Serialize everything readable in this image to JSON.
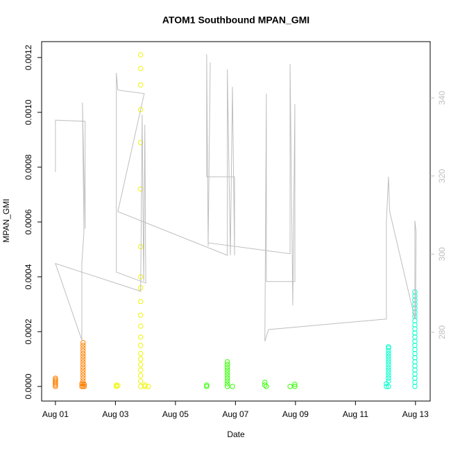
{
  "chart_data": {
    "type": "scatter",
    "title": "ATOM1 Southbound MPAN_GMI",
    "x_label": "Date",
    "y_label": "MPAN_GMI",
    "xlim": [
      -0.46,
      12.49
    ],
    "ylim": [
      -5.32e-05,
      0.001258
    ],
    "y2lim": [
      262.4,
      354.4
    ],
    "xticks": [
      {
        "value": 0,
        "label": "Aug 01"
      },
      {
        "value": 2,
        "label": "Aug 03"
      },
      {
        "value": 4,
        "label": "Aug 05"
      },
      {
        "value": 6,
        "label": "Aug 07"
      },
      {
        "value": 8,
        "label": "Aug 09"
      },
      {
        "value": 10,
        "label": "Aug 11"
      },
      {
        "value": 12,
        "label": "Aug 13"
      }
    ],
    "yticks": [
      {
        "value": 0,
        "label": "0.0000"
      },
      {
        "value": 0.0002,
        "label": "0.0002"
      },
      {
        "value": 0.0004,
        "label": "0.0004"
      },
      {
        "value": 0.0006,
        "label": "0.0006"
      },
      {
        "value": 0.0008,
        "label": "0.0008"
      },
      {
        "value": 0.001,
        "label": "0.0010"
      },
      {
        "value": 0.0012,
        "label": "0.0012"
      }
    ],
    "y2ticks": [
      280,
      300,
      320,
      340
    ],
    "series": [
      {
        "color": "#ff8000",
        "x": [
          0,
          0,
          0,
          0,
          0,
          0,
          0,
          0.88,
          0.88,
          0.92,
          0.92,
          0.92,
          0.92,
          0.92,
          0.92,
          0.92,
          0.92,
          0.92,
          0.92,
          0.92,
          0.92,
          0.92,
          0.92,
          0.92,
          0.92,
          0.92,
          0.96,
          0.96
        ],
        "values": [
          0,
          5e-06,
          1e-05,
          1.5e-05,
          2e-05,
          2.5e-05,
          3e-05,
          0,
          1e-05,
          0,
          1e-05,
          2e-05,
          3e-05,
          4e-05,
          5e-05,
          6e-05,
          7e-05,
          8e-05,
          9e-05,
          0.0001,
          0.00011,
          0.00012,
          0.00013,
          0.00014,
          0.00015,
          0.00016,
          0,
          8e-06
        ]
      },
      {
        "color": "#f0f500",
        "x": [
          2.03,
          2.03,
          2.08,
          2.84,
          2.84,
          2.84,
          2.84,
          2.84,
          2.84,
          2.84,
          2.84,
          2.84,
          2.84,
          2.84,
          2.84,
          2.84,
          2.84,
          2.84,
          2.84,
          2.84,
          2.84,
          2.84,
          2.84,
          2.84,
          2.98,
          2.98,
          3.1
        ],
        "values": [
          0,
          5e-06,
          3e-06,
          0.00121,
          0.00116,
          0.0011,
          0.00101,
          0.00089,
          0.00072,
          0.00051,
          0.0004,
          0.00036,
          0.00031,
          0.00026,
          0.00022,
          0.00018,
          0.00015,
          0.00012,
          0.0001,
          8e-05,
          6e-05,
          4e-05,
          2e-05,
          0,
          0,
          5e-06,
          0
        ]
      },
      {
        "color": "#33ff00",
        "x": [
          5.04,
          5.04,
          5.73,
          5.73,
          5.73,
          5.73,
          5.73,
          5.73,
          5.73,
          5.73,
          5.73,
          5.73,
          5.9,
          6.98,
          6.98,
          7.03,
          7.82,
          7.98,
          7.98
        ],
        "values": [
          0,
          5e-06,
          9e-05,
          8e-05,
          7e-05,
          6e-05,
          5e-05,
          4e-05,
          3e-05,
          2e-05,
          1e-05,
          0,
          0,
          1.5e-05,
          5e-06,
          0,
          0,
          8e-06,
          0
        ]
      },
      {
        "color": "#00ffcc",
        "x": [
          11.03,
          11.03,
          11.1,
          11.1,
          11.1,
          11.1,
          11.1,
          11.1,
          11.1,
          11.1,
          11.1,
          11.1,
          11.1,
          11.1,
          11.1,
          11.1,
          11.1,
          11.98,
          11.98,
          11.98,
          11.98,
          11.98,
          11.98,
          11.98,
          11.98,
          11.98,
          11.98,
          11.98,
          11.98,
          11.98,
          11.98,
          11.98,
          11.98,
          11.98,
          11.98,
          11.98,
          11.98,
          11.98,
          11.98,
          11.98,
          11.98
        ],
        "values": [
          0,
          1e-05,
          0.000145,
          0.00014,
          0.00013,
          0.00012,
          0.00011,
          0.0001,
          9e-05,
          8e-05,
          7e-05,
          6e-05,
          5e-05,
          4e-05,
          3e-05,
          2e-05,
          0,
          0.000345,
          0.00033,
          0.000315,
          0.0003,
          0.000285,
          0.00027,
          0.000255,
          0.00024,
          0.000225,
          0.00021,
          0.000195,
          0.00018,
          0.000165,
          0.00015,
          0.000135,
          0.00012,
          0.000105,
          9e-05,
          7.5e-05,
          6e-05,
          4.5e-05,
          3e-05,
          1.5e-05,
          0
        ]
      },
      {
        "color": "#bebebe",
        "axis": "y2",
        "x": [
          0,
          0,
          0.99,
          0.99,
          0.9,
          0.95,
          0.88,
          0.88,
          0,
          2.84,
          2.89,
          2.94,
          2.98,
          3.01,
          2.03,
          2.03,
          2.08,
          2.96,
          2.08,
          5.73,
          5.73,
          5.83,
          5.9,
          5.97,
          5.97,
          5.04,
          5.04,
          5.09,
          5.16,
          5.09,
          7.82,
          7.82,
          7.91,
          7.98,
          7.98,
          7.03,
          7.03,
          6.98,
          7.1,
          11.03,
          11.03,
          11.1,
          11.14,
          11.98,
          11.98,
          12.02,
          12.0
        ],
        "values": [
          321.0,
          334.3,
          334.0,
          306.5,
          338.8,
          305.6,
          297.6,
          278.0,
          297.6,
          290.5,
          335.7,
          293.1,
          333.1,
          292.6,
          295.4,
          346.4,
          342.0,
          341.1,
          310.9,
          299.7,
          347.3,
          299.7,
          342.8,
          299.7,
          319.8,
          319.8,
          351.2,
          302.0,
          349.1,
          302.9,
          300.1,
          348.7,
          286.9,
          338.4,
          293.0,
          293.0,
          341.1,
          277.7,
          280.7,
          283.4,
          308.2,
          319.8,
          310.9,
          283.4,
          308.6,
          305.6,
          283.4
        ]
      }
    ]
  }
}
